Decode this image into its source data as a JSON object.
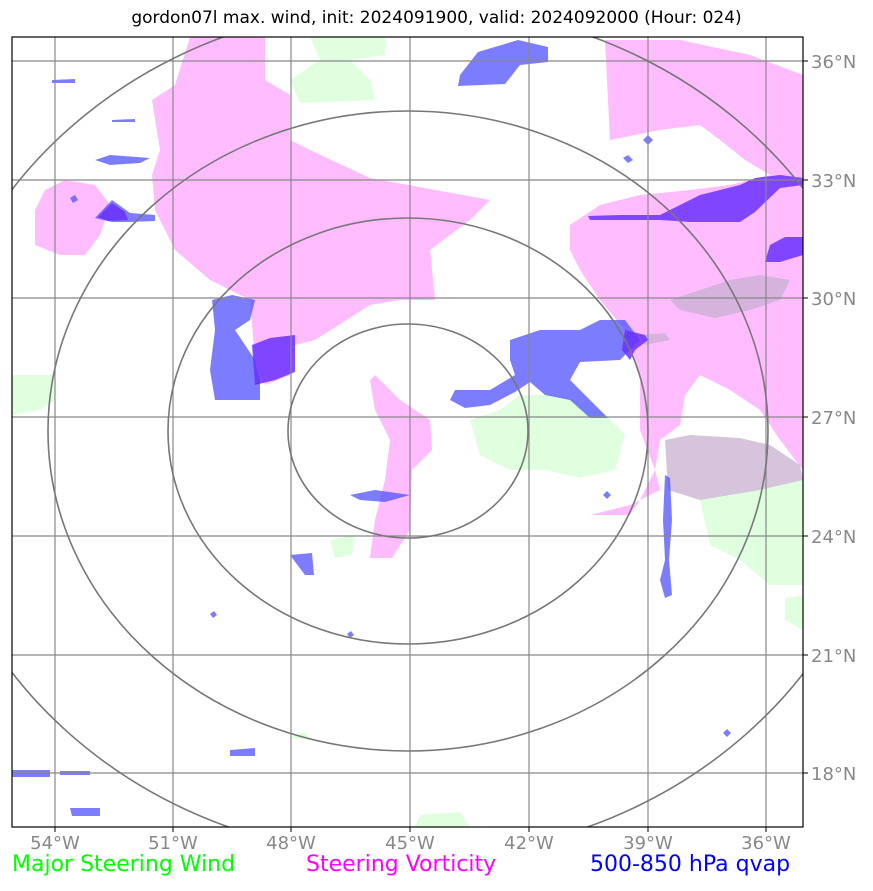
{
  "title": "gordon07l max. wind, init: 2024091900, valid: 2024092000 (Hour: 024)",
  "axes": {
    "lon_ticks": [
      "54°W",
      "51°W",
      "48°W",
      "45°W",
      "42°W",
      "39°W",
      "36°W"
    ],
    "lat_ticks": [
      "36°N",
      "33°N",
      "30°N",
      "27°N",
      "24°N",
      "21°N",
      "18°N"
    ]
  },
  "legend": {
    "item1": "Major Steering Wind",
    "item2": "Steering Vorticity",
    "item3": "500-850 hPa qvap"
  },
  "colors": {
    "wind": "#00ff00",
    "vorticity": "#ff00ff",
    "qvap": "#0000ff",
    "grid": "#888888"
  },
  "map_content": {
    "center": "45°W, 26.7°N",
    "range_rings": 4,
    "grid": true
  }
}
